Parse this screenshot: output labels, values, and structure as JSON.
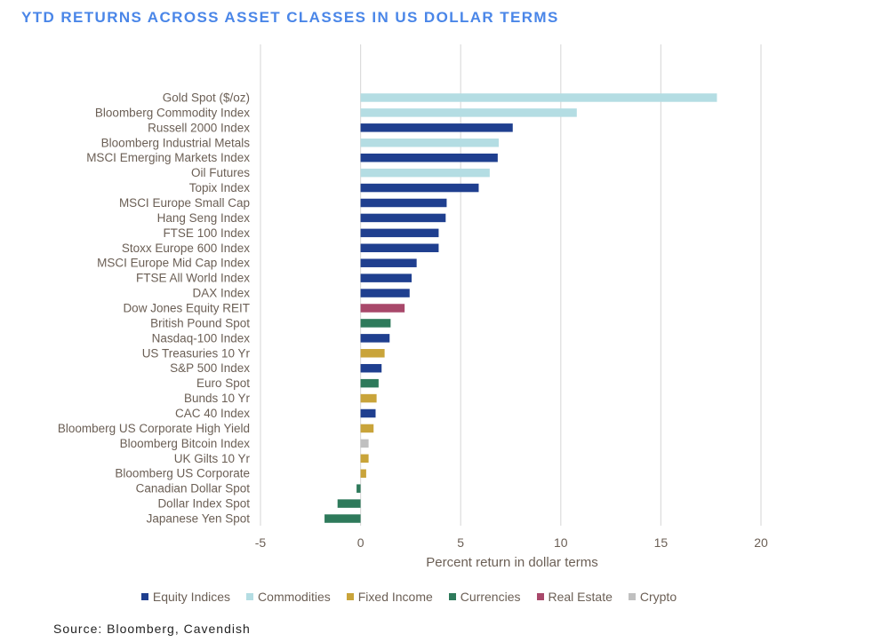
{
  "chart_data": {
    "type": "bar",
    "orientation": "horizontal",
    "title": "YTD RETURNS ACROSS ASSET CLASSES IN US DOLLAR TERMS",
    "xlabel": "Percent return in dollar terms",
    "ylabel": "",
    "xlim": [
      -5,
      20
    ],
    "xticks": [
      -5,
      0,
      5,
      10,
      15,
      20
    ],
    "grid": true,
    "legend_position": "bottom",
    "categories": [
      "Gold Spot ($/oz)",
      "Bloomberg Commodity Index",
      "Russell 2000 Index",
      "Bloomberg Industrial Metals",
      "MSCI Emerging Markets Index",
      "Oil Futures",
      "Topix Index",
      "MSCI Europe Small Cap",
      "Hang Seng Index",
      "FTSE 100 Index",
      "Stoxx Europe 600 Index",
      "MSCI Europe Mid Cap Index",
      "FTSE All World Index",
      "DAX Index",
      "Dow Jones Equity REIT",
      "British Pound Spot",
      "Nasdaq-100 Index",
      "US Treasuries 10 Yr",
      "S&P 500 Index",
      "Euro Spot",
      "Bunds 10 Yr",
      "CAC 40 Index",
      "Bloomberg US Corporate High Yield",
      "Bloomberg Bitcoin Index",
      "UK Gilts 10 Yr",
      "Bloomberg US Corporate",
      "Canadian Dollar Spot",
      "Dollar Index Spot",
      "Japanese Yen Spot"
    ],
    "values": [
      17.8,
      10.8,
      7.6,
      6.9,
      6.85,
      6.45,
      5.9,
      4.3,
      4.25,
      3.9,
      3.9,
      2.8,
      2.55,
      2.45,
      2.2,
      1.5,
      1.45,
      1.2,
      1.05,
      0.9,
      0.8,
      0.75,
      0.65,
      0.4,
      0.4,
      0.28,
      -0.2,
      -1.15,
      -1.8
    ],
    "groups": [
      "Commodities",
      "Commodities",
      "Equity Indices",
      "Commodities",
      "Equity Indices",
      "Commodities",
      "Equity Indices",
      "Equity Indices",
      "Equity Indices",
      "Equity Indices",
      "Equity Indices",
      "Equity Indices",
      "Equity Indices",
      "Equity Indices",
      "Real Estate",
      "Currencies",
      "Equity Indices",
      "Fixed Income",
      "Equity Indices",
      "Currencies",
      "Fixed Income",
      "Equity Indices",
      "Fixed Income",
      "Crypto",
      "Fixed Income",
      "Fixed Income",
      "Currencies",
      "Currencies",
      "Currencies"
    ],
    "legend": [
      {
        "name": "Equity Indices",
        "color": "#1f3f8f"
      },
      {
        "name": "Commodities",
        "color": "#b4dde3"
      },
      {
        "name": "Fixed Income",
        "color": "#c9a43a"
      },
      {
        "name": "Currencies",
        "color": "#2e7a5b"
      },
      {
        "name": "Real Estate",
        "color": "#a8486a"
      },
      {
        "name": "Crypto",
        "color": "#c0c0c0"
      }
    ]
  },
  "source": "Source: Bloomberg, Cavendish"
}
